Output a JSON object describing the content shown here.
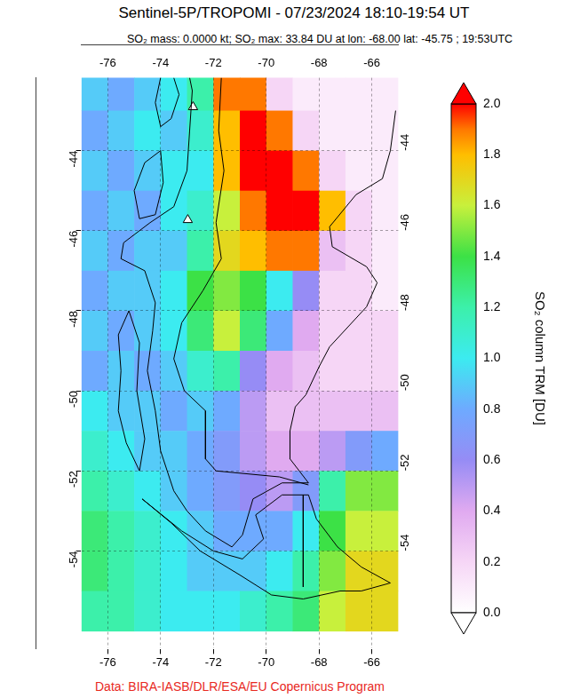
{
  "chart_data": {
    "type": "map",
    "title": "Sentinel-5P/TROPOMI - 07/23/2024 18:10-19:54 UT",
    "subtitle": "SO₂ mass: 0.0000 kt; SO₂ max: 33.84 DU at lon: -68.00 lat: -45.75 ; 19:53UTC",
    "credit": "Data: BIRA-IASB/DLR/ESA/EU Copernicus Program",
    "xlim": [
      -77,
      -65
    ],
    "ylim": [
      -56.44,
      -42.18
    ],
    "xticks": [
      -76,
      -74,
      -72,
      -70,
      -68,
      -66
    ],
    "yticks": [
      -54,
      -52,
      -50,
      -48,
      -46,
      -44
    ],
    "grid": true,
    "colorbar": {
      "label": "SO₂ column TRM [DU]",
      "range": [
        0,
        2
      ],
      "ticks": [
        {
          "value": 0,
          "label": "0.0"
        },
        {
          "value": 0.2,
          "label": "0.2"
        },
        {
          "value": 0.4,
          "label": "0.4"
        },
        {
          "value": 0.6,
          "label": "0.6"
        },
        {
          "value": 0.8,
          "label": "0.8"
        },
        {
          "value": 1,
          "label": "1.0"
        },
        {
          "value": 1.2,
          "label": "1.2"
        },
        {
          "value": 1.4,
          "label": "1.4"
        },
        {
          "value": 1.6,
          "label": "1.6"
        },
        {
          "value": 1.8,
          "label": "1.8"
        },
        {
          "value": 2,
          "label": "2.0"
        }
      ]
    },
    "cells": {
      "lon": [
        -76.5,
        -75.5,
        -74.5,
        -73.5,
        -72.5,
        -71.5,
        -70.5,
        -69.5,
        -68.5,
        -67.5,
        -66.5,
        -65.5
      ],
      "lat": [
        -42.5,
        -43.5,
        -44.5,
        -45.5,
        -46.5,
        -47.5,
        -48.5,
        -49.5,
        -50.5,
        -51.5,
        -52.5,
        -53.5,
        -54.5,
        -55.5
      ],
      "values": [
        [
          0.9,
          0.8,
          0.9,
          1.0,
          1.2,
          1.9,
          1.9,
          0.2,
          0.1,
          0.1,
          0.1,
          0.1
        ],
        [
          0.8,
          0.9,
          1.0,
          0.9,
          1.1,
          1.8,
          2.0,
          1.9,
          0.2,
          0.1,
          0.1,
          0.1
        ],
        [
          0.9,
          0.8,
          0.9,
          1.0,
          1.0,
          1.8,
          2.0,
          2.0,
          1.9,
          0.2,
          0.1,
          0.1
        ],
        [
          0.8,
          0.9,
          0.8,
          1.0,
          1.1,
          1.6,
          1.9,
          2.0,
          2.0,
          1.8,
          0.2,
          0.1
        ],
        [
          0.9,
          0.8,
          0.9,
          0.9,
          1.2,
          1.7,
          1.8,
          1.9,
          1.9,
          0.3,
          0.2,
          0.1
        ],
        [
          0.8,
          0.9,
          0.9,
          1.0,
          1.4,
          1.5,
          1.4,
          1.0,
          0.6,
          0.2,
          0.2,
          0.1
        ],
        [
          0.9,
          0.8,
          0.9,
          1.0,
          1.3,
          1.6,
          1.3,
          0.8,
          0.4,
          0.2,
          0.2,
          0.2
        ],
        [
          0.8,
          0.9,
          0.8,
          0.9,
          1.1,
          1.2,
          0.6,
          0.4,
          0.3,
          0.2,
          0.2,
          0.2
        ],
        [
          1.0,
          0.9,
          0.9,
          0.8,
          0.9,
          0.8,
          0.5,
          0.3,
          0.3,
          0.3,
          0.3,
          0.3
        ],
        [
          1.1,
          1.0,
          0.9,
          0.9,
          0.8,
          0.7,
          0.5,
          0.4,
          0.4,
          0.5,
          0.7,
          0.8
        ],
        [
          1.2,
          1.1,
          1.0,
          0.9,
          0.8,
          0.7,
          0.6,
          0.5,
          0.7,
          1.2,
          1.5,
          1.5
        ],
        [
          1.3,
          1.2,
          1.1,
          1.0,
          0.9,
          0.8,
          0.8,
          0.8,
          1.0,
          1.4,
          1.6,
          1.6
        ],
        [
          1.3,
          1.2,
          1.1,
          1.0,
          0.9,
          0.9,
          0.9,
          1.0,
          1.2,
          1.5,
          1.7,
          1.7
        ],
        [
          1.2,
          1.2,
          1.1,
          1.0,
          1.0,
          1.0,
          1.1,
          1.2,
          1.3,
          1.6,
          1.7,
          1.7
        ]
      ]
    },
    "coastlines": [
      [
        [
          -65.1,
          -43.0
        ],
        [
          -65.3,
          -44.0
        ],
        [
          -65.6,
          -44.7
        ],
        [
          -66.6,
          -45.1
        ],
        [
          -67.6,
          -45.9
        ],
        [
          -67.5,
          -46.4
        ],
        [
          -66.2,
          -46.9
        ],
        [
          -65.8,
          -47.3
        ],
        [
          -66.2,
          -47.9
        ],
        [
          -67.6,
          -48.9
        ],
        [
          -68.0,
          -49.4
        ],
        [
          -68.5,
          -50.1
        ],
        [
          -68.9,
          -50.4
        ],
        [
          -69.1,
          -51.0
        ],
        [
          -69.1,
          -51.7
        ],
        [
          -68.4,
          -52.3
        ],
        [
          -69.4,
          -52.3
        ],
        [
          -70.5,
          -52.7
        ],
        [
          -70.9,
          -53.6
        ],
        [
          -71.3,
          -53.9
        ],
        [
          -72.3,
          -53.5
        ],
        [
          -73.0,
          -53.0
        ],
        [
          -73.5,
          -52.5
        ],
        [
          -74.0,
          -51.5
        ],
        [
          -74.2,
          -50.5
        ],
        [
          -74.5,
          -49.5
        ],
        [
          -74.3,
          -48.5
        ],
        [
          -74.2,
          -47.8
        ],
        [
          -74.6,
          -47.0
        ],
        [
          -75.5,
          -46.7
        ],
        [
          -75.4,
          -46.3
        ],
        [
          -74.4,
          -45.8
        ],
        [
          -73.5,
          -45.4
        ],
        [
          -73.0,
          -44.5
        ],
        [
          -72.9,
          -43.5
        ],
        [
          -72.8,
          -42.5
        ],
        [
          -72.9,
          -42.18
        ]
      ],
      [
        [
          -73.5,
          -42.18
        ],
        [
          -73.3,
          -42.6
        ],
        [
          -73.6,
          -43.2
        ],
        [
          -74.0,
          -43.4
        ],
        [
          -74.2,
          -42.8
        ],
        [
          -74.0,
          -42.18
        ]
      ],
      [
        [
          -74.0,
          -44.0
        ],
        [
          -74.6,
          -44.3
        ],
        [
          -75.0,
          -45.0
        ],
        [
          -74.8,
          -45.7
        ],
        [
          -74.2,
          -45.6
        ],
        [
          -73.9,
          -44.8
        ],
        [
          -74.0,
          -44.0
        ]
      ],
      [
        [
          -75.2,
          -48.0
        ],
        [
          -75.6,
          -48.6
        ],
        [
          -75.5,
          -49.5
        ],
        [
          -75.6,
          -50.5
        ],
        [
          -75.3,
          -51.3
        ],
        [
          -74.8,
          -52.0
        ],
        [
          -74.6,
          -51.2
        ],
        [
          -74.9,
          -50.0
        ],
        [
          -74.8,
          -48.8
        ],
        [
          -75.2,
          -48.0
        ]
      ],
      [
        [
          -74.7,
          -52.7
        ],
        [
          -73.6,
          -53.3
        ],
        [
          -72.5,
          -54.0
        ],
        [
          -71.0,
          -54.6
        ],
        [
          -69.8,
          -55.1
        ],
        [
          -68.6,
          -55.2
        ],
        [
          -67.2,
          -55.0
        ],
        [
          -66.4,
          -55.0
        ],
        [
          -65.3,
          -54.8
        ],
        [
          -66.4,
          -54.4
        ],
        [
          -67.3,
          -53.9
        ],
        [
          -68.1,
          -53.2
        ],
        [
          -68.4,
          -52.6
        ],
        [
          -69.4,
          -52.6
        ],
        [
          -70.4,
          -53.1
        ],
        [
          -70.1,
          -53.7
        ],
        [
          -70.9,
          -54.2
        ],
        [
          -72.0,
          -54.0
        ],
        [
          -73.2,
          -53.5
        ],
        [
          -74.7,
          -52.7
        ]
      ],
      [
        [
          -71.7,
          -42.18
        ],
        [
          -71.8,
          -43.5
        ],
        [
          -71.6,
          -44.5
        ],
        [
          -71.9,
          -45.8
        ],
        [
          -71.7,
          -46.7
        ],
        [
          -72.4,
          -47.5
        ],
        [
          -73.2,
          -48.3
        ],
        [
          -73.5,
          -49.2
        ],
        [
          -73.1,
          -50.0
        ],
        [
          -72.3,
          -50.5
        ],
        [
          -72.3,
          -51.7
        ],
        [
          -71.9,
          -52.0
        ],
        [
          -69.5,
          -52.15
        ],
        [
          -68.4,
          -52.35
        ]
      ],
      [
        [
          -68.6,
          -52.6
        ],
        [
          -68.6,
          -54.9
        ]
      ]
    ],
    "volcanoes": [
      [
        -72.77,
        -42.91
      ],
      [
        -72.97,
        -45.73
      ]
    ]
  }
}
